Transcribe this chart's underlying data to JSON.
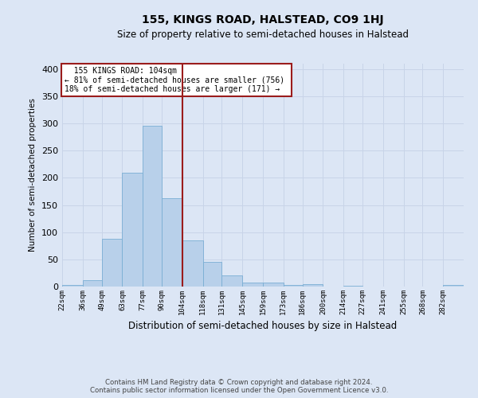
{
  "title": "155, KINGS ROAD, HALSTEAD, CO9 1HJ",
  "subtitle": "Size of property relative to semi-detached houses in Halstead",
  "xlabel": "Distribution of semi-detached houses by size in Halstead",
  "ylabel": "Number of semi-detached properties",
  "footer_line1": "Contains HM Land Registry data © Crown copyright and database right 2024.",
  "footer_line2": "Contains public sector information licensed under the Open Government Licence v3.0.",
  "annotation_title": "155 KINGS ROAD: 104sqm",
  "annotation_line1": "← 81% of semi-detached houses are smaller (756)",
  "annotation_line2": "18% of semi-detached houses are larger (171) →",
  "property_size": 104,
  "bin_edges": [
    22,
    36,
    49,
    63,
    77,
    90,
    104,
    118,
    131,
    145,
    159,
    173,
    186,
    200,
    214,
    227,
    241,
    255,
    268,
    282,
    296
  ],
  "bar_heights": [
    3,
    12,
    88,
    209,
    296,
    162,
    85,
    45,
    20,
    7,
    7,
    3,
    5,
    0,
    2,
    0,
    0,
    0,
    0,
    3
  ],
  "bar_color": "#b8d0ea",
  "bar_edge_color": "#7aaed4",
  "vline_color": "#9b1c1c",
  "annotation_box_color": "#ffffff",
  "annotation_box_edge": "#9b1c1c",
  "grid_color": "#c8d4e8",
  "bg_color": "#dce6f5",
  "ylim": [
    0,
    410
  ],
  "yticks": [
    0,
    50,
    100,
    150,
    200,
    250,
    300,
    350,
    400
  ],
  "title_fontsize": 10,
  "subtitle_fontsize": 8.5,
  "ylabel_fontsize": 7.5,
  "xlabel_fontsize": 8.5,
  "ytick_fontsize": 8,
  "xtick_fontsize": 6.5
}
